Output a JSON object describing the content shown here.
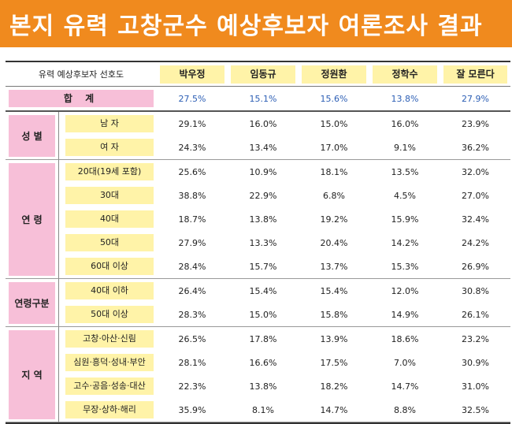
{
  "title": "본지 유력 고창군수 예상후보자 여론조사 결과",
  "header": {
    "corner": "유력 예상후보자 선호도",
    "candidates": [
      "박우정",
      "임동규",
      "정원환",
      "정학수",
      "잘 모른다"
    ]
  },
  "total": {
    "label": "합 계",
    "values": [
      "27.5%",
      "15.1%",
      "15.6%",
      "13.8%",
      "27.9%"
    ]
  },
  "groups": [
    {
      "name": "성 별",
      "rows": [
        {
          "label": "남 자",
          "values": [
            "29.1%",
            "16.0%",
            "15.0%",
            "16.0%",
            "23.9%"
          ]
        },
        {
          "label": "여 자",
          "values": [
            "24.3%",
            "13.4%",
            "17.0%",
            "9.1%",
            "36.2%"
          ]
        }
      ]
    },
    {
      "name": "연 령",
      "rows": [
        {
          "label": "20대(19세 포함)",
          "values": [
            "25.6%",
            "10.9%",
            "18.1%",
            "13.5%",
            "32.0%"
          ]
        },
        {
          "label": "30대",
          "values": [
            "38.8%",
            "22.9%",
            "6.8%",
            "4.5%",
            "27.0%"
          ]
        },
        {
          "label": "40대",
          "values": [
            "18.7%",
            "13.8%",
            "19.2%",
            "15.9%",
            "32.4%"
          ]
        },
        {
          "label": "50대",
          "values": [
            "27.9%",
            "13.3%",
            "20.4%",
            "14.2%",
            "24.2%"
          ]
        },
        {
          "label": "60대 이상",
          "values": [
            "28.4%",
            "15.7%",
            "13.7%",
            "15.3%",
            "26.9%"
          ]
        }
      ]
    },
    {
      "name": "연령구분",
      "rows": [
        {
          "label": "40대 이하",
          "values": [
            "26.4%",
            "15.4%",
            "15.4%",
            "12.0%",
            "30.8%"
          ]
        },
        {
          "label": "50대 이상",
          "values": [
            "28.3%",
            "15.0%",
            "15.8%",
            "14.9%",
            "26.1%"
          ]
        }
      ]
    },
    {
      "name": "지 역",
      "rows": [
        {
          "label": "고창·아산·신림",
          "values": [
            "26.5%",
            "17.8%",
            "13.9%",
            "18.6%",
            "23.2%"
          ]
        },
        {
          "label": "심원·흥덕·성내·부안",
          "values": [
            "28.1%",
            "16.6%",
            "17.5%",
            "7.0%",
            "30.9%"
          ]
        },
        {
          "label": "고수·공음·성송·대산",
          "values": [
            "22.3%",
            "13.8%",
            "18.2%",
            "14.7%",
            "31.0%"
          ]
        },
        {
          "label": "무장·상하·해리",
          "values": [
            "35.9%",
            "8.1%",
            "14.7%",
            "8.8%",
            "32.5%"
          ]
        }
      ]
    }
  ],
  "colors": {
    "title_bar": "#f08a1e",
    "label_pink": "#f7bfd8",
    "label_yellow": "#fff3a8",
    "highlight_green": "#239b3b",
    "total_blue": "#2d5fb5"
  },
  "highlights": [
    {
      "group": 2,
      "row": 2,
      "column": 2
    }
  ]
}
